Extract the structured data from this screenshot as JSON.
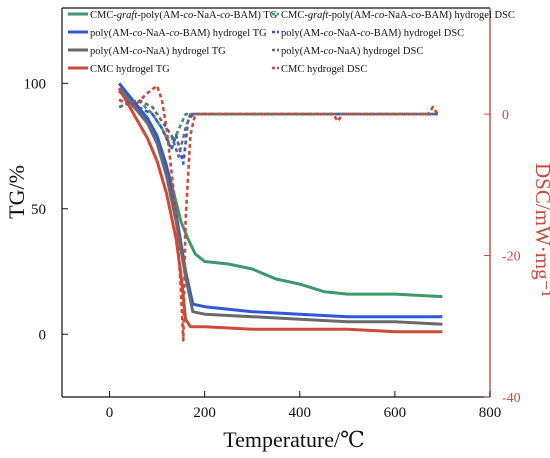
{
  "chart_data": {
    "type": "line",
    "xlabel": "Temperature/℃",
    "ylabel_left": "TG/%",
    "ylabel_right": "DSC/mW·mg⁻¹",
    "xlim": [
      -100,
      800
    ],
    "ylim_left": [
      -25,
      130
    ],
    "ylim_right": [
      -40,
      15
    ],
    "x_ticks": [
      0,
      200,
      400,
      600,
      800
    ],
    "y_left_ticks": [
      0,
      50,
      100
    ],
    "y_right_ticks": [
      0,
      -20,
      -40
    ],
    "grid": false,
    "legend": "top-left",
    "colors": {
      "green": "#3a9a6a",
      "blue": "#2f58d8",
      "gray": "#6a6a6a",
      "red": "#cc4a38",
      "right_axis": "#c84a3c"
    },
    "legend_rows": [
      [
        {
          "series": "cmc_graft_tg",
          "segments": [
            {
              "text": "CMC-",
              "italic": false
            },
            {
              "text": "graft",
              "italic": true
            },
            {
              "text": "-poly(AM-",
              "italic": false
            },
            {
              "text": "co",
              "italic": true
            },
            {
              "text": "-NaA-",
              "italic": false
            },
            {
              "text": "co",
              "italic": true
            },
            {
              "text": "-BAM) TG",
              "italic": false
            }
          ]
        },
        {
          "series": "cmc_graft_dsc",
          "segments": [
            {
              "text": "CMC-",
              "italic": false
            },
            {
              "text": "graft",
              "italic": true
            },
            {
              "text": "-poly(AM-",
              "italic": false
            },
            {
              "text": "co",
              "italic": true
            },
            {
              "text": "-NaA-",
              "italic": false
            },
            {
              "text": "co",
              "italic": true
            },
            {
              "text": "-BAM) hydrogel DSC",
              "italic": false
            }
          ]
        }
      ],
      [
        {
          "series": "poly_bam_tg",
          "segments": [
            {
              "text": "poly(AM-",
              "italic": false
            },
            {
              "text": "co",
              "italic": true
            },
            {
              "text": "-NaA-",
              "italic": false
            },
            {
              "text": "co",
              "italic": true
            },
            {
              "text": "-BAM) hydrogel TG",
              "italic": false
            }
          ]
        },
        {
          "series": "poly_bam_dsc",
          "segments": [
            {
              "text": "poly(AM-",
              "italic": false
            },
            {
              "text": "co",
              "italic": true
            },
            {
              "text": "-NaA-",
              "italic": false
            },
            {
              "text": "co",
              "italic": true
            },
            {
              "text": "-BAM) hydrogel DSC",
              "italic": false
            }
          ]
        }
      ],
      [
        {
          "series": "poly_naa_tg",
          "segments": [
            {
              "text": "poly(AM-",
              "italic": false
            },
            {
              "text": "co",
              "italic": true
            },
            {
              "text": "-NaA) hydrogel TG",
              "italic": false
            }
          ]
        },
        {
          "series": "poly_naa_dsc",
          "segments": [
            {
              "text": "poly(AM-",
              "italic": false
            },
            {
              "text": "co",
              "italic": true
            },
            {
              "text": "-NaA) hydrogel DSC",
              "italic": false
            }
          ]
        }
      ],
      [
        {
          "series": "cmc_tg",
          "segments": [
            {
              "text": "CMC hydrogel TG",
              "italic": false
            }
          ]
        },
        {
          "series": "cmc_dsc",
          "segments": [
            {
              "text": "CMC hydrogel DSC",
              "italic": false
            }
          ]
        }
      ]
    ],
    "series": [
      {
        "id": "cmc_graft_tg",
        "axis": "left",
        "color": "#3a9a6a",
        "dash": false,
        "points": [
          [
            20,
            98
          ],
          [
            50,
            92
          ],
          [
            80,
            85
          ],
          [
            110,
            73
          ],
          [
            130,
            60
          ],
          [
            150,
            45
          ],
          [
            165,
            38
          ],
          [
            180,
            32
          ],
          [
            200,
            29
          ],
          [
            250,
            28
          ],
          [
            300,
            26
          ],
          [
            350,
            22
          ],
          [
            400,
            20
          ],
          [
            450,
            17
          ],
          [
            500,
            16
          ],
          [
            600,
            16
          ],
          [
            700,
            15
          ]
        ]
      },
      {
        "id": "poly_bam_tg",
        "axis": "left",
        "color": "#2f58d8",
        "dash": false,
        "points": [
          [
            20,
            100
          ],
          [
            50,
            93
          ],
          [
            80,
            86
          ],
          [
            100,
            79
          ],
          [
            120,
            67
          ],
          [
            140,
            48
          ],
          [
            160,
            25
          ],
          [
            175,
            12
          ],
          [
            200,
            11
          ],
          [
            300,
            9
          ],
          [
            400,
            8
          ],
          [
            500,
            7
          ],
          [
            600,
            7
          ],
          [
            700,
            7
          ]
        ]
      },
      {
        "id": "poly_naa_tg",
        "axis": "left",
        "color": "#6a6a6a",
        "dash": false,
        "points": [
          [
            20,
            97
          ],
          [
            50,
            91
          ],
          [
            80,
            84
          ],
          [
            100,
            76
          ],
          [
            120,
            63
          ],
          [
            140,
            45
          ],
          [
            160,
            23
          ],
          [
            175,
            9
          ],
          [
            200,
            8
          ],
          [
            300,
            7
          ],
          [
            400,
            6
          ],
          [
            500,
            5
          ],
          [
            600,
            5
          ],
          [
            700,
            4
          ]
        ]
      },
      {
        "id": "cmc_tg",
        "axis": "left",
        "color": "#cc4a38",
        "dash": false,
        "points": [
          [
            20,
            98
          ],
          [
            50,
            88
          ],
          [
            80,
            78
          ],
          [
            100,
            69
          ],
          [
            120,
            56
          ],
          [
            140,
            38
          ],
          [
            150,
            24
          ],
          [
            160,
            6
          ],
          [
            170,
            3
          ],
          [
            200,
            3
          ],
          [
            300,
            2
          ],
          [
            400,
            2
          ],
          [
            500,
            2
          ],
          [
            600,
            1
          ],
          [
            700,
            1
          ]
        ]
      },
      {
        "id": "cmc_graft_dsc",
        "axis": "right",
        "color": "#3a9a6a",
        "dash": true,
        "points": [
          [
            20,
            1
          ],
          [
            60,
            2
          ],
          [
            90,
            0
          ],
          [
            110,
            -2
          ],
          [
            125,
            -4
          ],
          [
            140,
            -3
          ],
          [
            160,
            0
          ],
          [
            180,
            0
          ],
          [
            300,
            0
          ],
          [
            400,
            0
          ],
          [
            500,
            0
          ],
          [
            600,
            0
          ],
          [
            690,
            0
          ]
        ]
      },
      {
        "id": "poly_bam_dsc",
        "axis": "right",
        "color": "#2f58d8",
        "dash": true,
        "points": [
          [
            20,
            2
          ],
          [
            60,
            1
          ],
          [
            90,
            0
          ],
          [
            110,
            -2
          ],
          [
            130,
            -5
          ],
          [
            140,
            -3
          ],
          [
            155,
            -7
          ],
          [
            165,
            -1
          ],
          [
            175,
            0
          ],
          [
            300,
            0
          ],
          [
            400,
            0
          ],
          [
            500,
            0
          ],
          [
            600,
            0
          ],
          [
            690,
            0
          ]
        ]
      },
      {
        "id": "poly_naa_dsc",
        "axis": "right",
        "color": "#6a6a6a",
        "dash": true,
        "points": [
          [
            20,
            1
          ],
          [
            60,
            2
          ],
          [
            90,
            1
          ],
          [
            110,
            -1
          ],
          [
            130,
            -3
          ],
          [
            145,
            -6
          ],
          [
            160,
            -2
          ],
          [
            170,
            0
          ],
          [
            300,
            0
          ],
          [
            400,
            0
          ],
          [
            500,
            0
          ],
          [
            600,
            0
          ],
          [
            690,
            0
          ]
        ]
      },
      {
        "id": "cmc_dsc",
        "axis": "right",
        "color": "#cc4a38",
        "dash": true,
        "points": [
          [
            20,
            2
          ],
          [
            50,
            1
          ],
          [
            80,
            3
          ],
          [
            100,
            4
          ],
          [
            110,
            2
          ],
          [
            120,
            -2
          ],
          [
            130,
            -8
          ],
          [
            140,
            -14
          ],
          [
            150,
            -25
          ],
          [
            155,
            -32
          ],
          [
            160,
            -15
          ],
          [
            170,
            -3
          ],
          [
            180,
            0
          ],
          [
            300,
            0
          ],
          [
            400,
            0
          ],
          [
            470,
            0
          ],
          [
            480,
            -1
          ],
          [
            490,
            0
          ],
          [
            500,
            0
          ],
          [
            600,
            0
          ],
          [
            670,
            0
          ],
          [
            680,
            1
          ],
          [
            690,
            0
          ]
        ]
      }
    ]
  }
}
